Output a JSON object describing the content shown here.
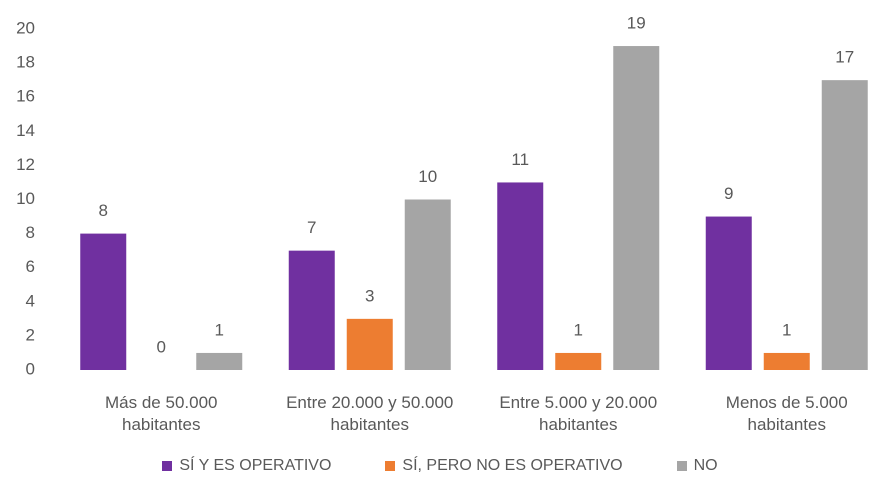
{
  "chart_data": {
    "type": "bar",
    "categories": [
      "Más de 50.000 habitantes",
      "Entre 20.000 y 50.000 habitantes",
      "Entre 5.000 y 20.000 habitantes",
      "Menos de 5.000 habitantes"
    ],
    "series": [
      {
        "name": "SÍ Y ES OPERATIVO",
        "color": "#7030a0",
        "values": [
          8,
          7,
          11,
          9
        ]
      },
      {
        "name": "SÍ, PERO NO ES OPERATIVO",
        "color": "#ed7d31",
        "values": [
          0,
          3,
          1,
          1
        ]
      },
      {
        "name": "NO",
        "color": "#a5a5a5",
        "values": [
          1,
          10,
          19,
          17
        ]
      }
    ],
    "ylim": [
      0,
      20
    ],
    "yticks": [
      0,
      2,
      4,
      6,
      8,
      10,
      12,
      14,
      16,
      18,
      20
    ],
    "grid": false,
    "legend": "bottom"
  }
}
